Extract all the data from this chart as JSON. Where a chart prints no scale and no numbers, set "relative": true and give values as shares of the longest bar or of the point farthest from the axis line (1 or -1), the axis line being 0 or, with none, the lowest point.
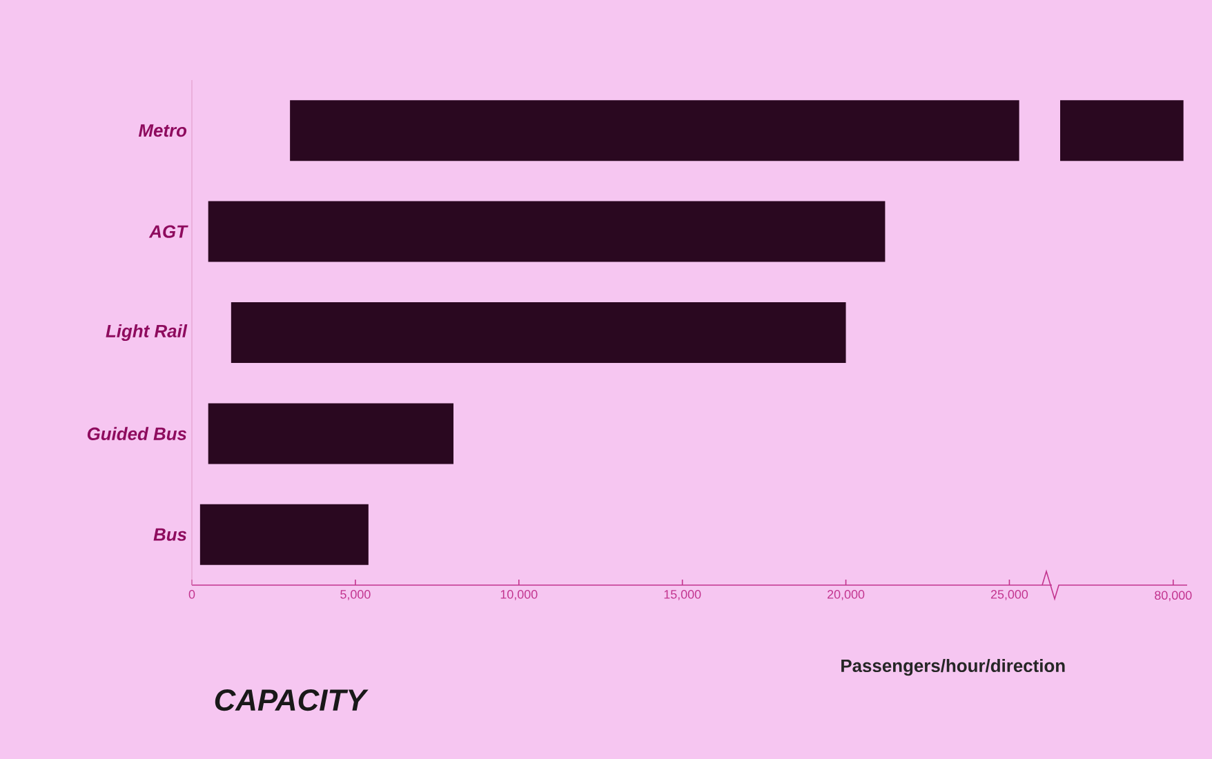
{
  "chart_data": [
    {
      "type": "bar",
      "orientation": "horizontal",
      "title": "CAPACITY",
      "xlabel": "Passengers/hour/direction",
      "color": "#2a0820",
      "categories": [
        "Metro",
        "AGT",
        "Light Rail",
        "Guided Bus",
        "Bus"
      ],
      "base": [
        3000,
        500,
        1200,
        500,
        250
      ],
      "values": [
        22300,
        20700,
        18800,
        7500,
        5150
      ],
      "xlim": [
        0,
        26300
      ],
      "xticks": [
        0,
        {
          "value": 5000,
          "label": "5,000"
        },
        {
          "value": 10000,
          "label": "10,000"
        },
        {
          "value": 15000,
          "label": "15,000"
        },
        {
          "value": 20000,
          "label": "20,000"
        },
        {
          "value": 25000,
          "label": "25,000"
        }
      ]
    },
    {
      "type": "bar",
      "orientation": "horizontal",
      "color": "#2a0820",
      "categories": [
        null,
        null,
        null,
        null,
        null
      ],
      "relative": true,
      "values": [
        1,
        null,
        null,
        null,
        null
      ],
      "annotations": [
        "80,000"
      ]
    }
  ]
}
